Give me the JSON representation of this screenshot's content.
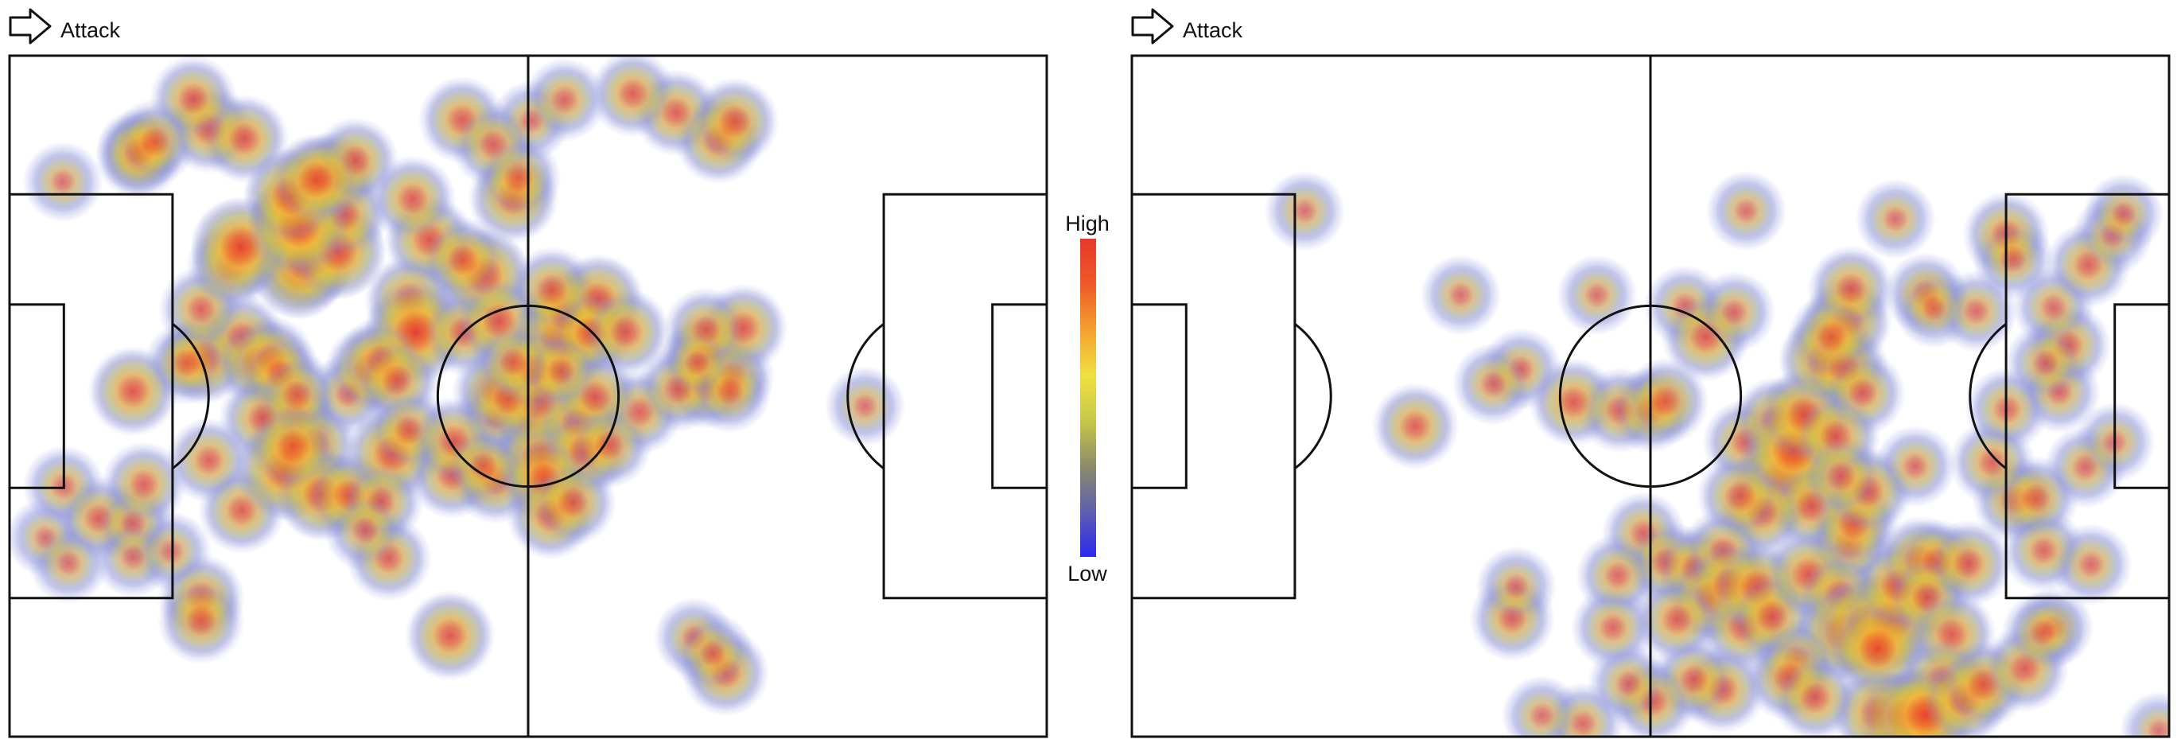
{
  "colors": {
    "pitch_line": "#111111",
    "scale": [
      "#2a2aee",
      "#5f5fae",
      "#8c8c6a",
      "#c8c84a",
      "#f0e040",
      "#f4a030",
      "#ee5a28",
      "#e8382a"
    ],
    "halo": "#8c92dc"
  },
  "colorbar": {
    "high_label": "High",
    "low_label": "Low"
  },
  "chart_data": [
    {
      "type": "heatmap",
      "direction_label": "Attack",
      "direction_icon": "arrow-right-icon",
      "pitch_length": 105,
      "pitch_width": 68,
      "attack_direction": "right",
      "points": [
        {
          "x": 12.5,
          "y": 33.5,
          "w": 0.6
        },
        {
          "x": 19.7,
          "y": 30.2,
          "w": 0.65
        },
        {
          "x": 23.5,
          "y": 28.1,
          "w": 0.5
        },
        {
          "x": 25.1,
          "y": 30.6,
          "w": 0.55
        },
        {
          "x": 34.3,
          "y": 33.8,
          "w": 0.35
        },
        {
          "x": 36.4,
          "y": 31.3,
          "w": 0.55
        },
        {
          "x": 49.2,
          "y": 36.1,
          "w": 0.3
        },
        {
          "x": 52.6,
          "y": 36.5,
          "w": 0.35
        },
        {
          "x": 63.8,
          "y": 35.6,
          "w": 0.45
        },
        {
          "x": 70.6,
          "y": 30.0,
          "w": 0.55
        },
        {
          "x": 70.5,
          "y": 33.0,
          "w": 0.45
        },
        {
          "x": 73.2,
          "y": 32.0,
          "w": 0.4
        },
        {
          "x": 74.3,
          "y": 27.2,
          "w": 0.55
        },
        {
          "x": 70.5,
          "y": 27.4,
          "w": 0.45
        },
        {
          "x": 86.6,
          "y": 35.0,
          "w": 0.3
        },
        {
          "x": 19.4,
          "y": 25.3,
          "w": 0.45
        },
        {
          "x": 22.4,
          "y": 21.0,
          "w": 0.55
        },
        {
          "x": 29.3,
          "y": 21.6,
          "w": 0.75
        },
        {
          "x": 30.0,
          "y": 20.4,
          "w": 0.85
        },
        {
          "x": 33.2,
          "y": 19.5,
          "w": 0.8
        },
        {
          "x": 28.9,
          "y": 16.7,
          "w": 0.75
        },
        {
          "x": 33.9,
          "y": 15.9,
          "w": 0.55
        },
        {
          "x": 23.4,
          "y": 19.1,
          "w": 0.85
        },
        {
          "x": 48.0,
          "y": 22.0,
          "w": 0.75
        },
        {
          "x": 42.5,
          "y": 18.4,
          "w": 0.6
        },
        {
          "x": 40.8,
          "y": 14.3,
          "w": 0.5
        },
        {
          "x": 40.5,
          "y": 24.4,
          "w": 0.6
        },
        {
          "x": 41.1,
          "y": 27.6,
          "w": 0.9
        },
        {
          "x": 46.0,
          "y": 27.6,
          "w": 0.5
        },
        {
          "x": 49.6,
          "y": 26.5,
          "w": 0.6
        },
        {
          "x": 55.8,
          "y": 28.3,
          "w": 0.9
        },
        {
          "x": 56.4,
          "y": 25.8,
          "w": 0.65
        },
        {
          "x": 59.6,
          "y": 24.4,
          "w": 0.65
        },
        {
          "x": 58.8,
          "y": 27.7,
          "w": 0.55
        },
        {
          "x": 62.4,
          "y": 27.6,
          "w": 0.55
        },
        {
          "x": 54.9,
          "y": 23.4,
          "w": 0.5
        },
        {
          "x": 29.3,
          "y": 17.0,
          "w": 0.9
        },
        {
          "x": 28.5,
          "y": 14.0,
          "w": 0.75
        },
        {
          "x": 32.5,
          "y": 12.1,
          "w": 0.6
        },
        {
          "x": 35.0,
          "y": 10.5,
          "w": 0.5
        },
        {
          "x": 31.0,
          "y": 12.4,
          "w": 0.65
        },
        {
          "x": 5.4,
          "y": 12.6,
          "w": 0.3
        },
        {
          "x": 13.1,
          "y": 10.0,
          "w": 0.5
        },
        {
          "x": 13.1,
          "y": 9.5,
          "w": 0.45
        },
        {
          "x": 20.2,
          "y": 7.3,
          "w": 0.55
        },
        {
          "x": 23.8,
          "y": 8.3,
          "w": 0.55
        },
        {
          "x": 18.6,
          "y": 4.3,
          "w": 0.5
        },
        {
          "x": 14.7,
          "y": 8.6,
          "w": 0.45
        },
        {
          "x": 45.8,
          "y": 6.4,
          "w": 0.5
        },
        {
          "x": 52.8,
          "y": 6.5,
          "w": 0.3
        },
        {
          "x": 67.5,
          "y": 5.7,
          "w": 0.5
        },
        {
          "x": 71.8,
          "y": 8.4,
          "w": 0.55
        },
        {
          "x": 73.4,
          "y": 6.6,
          "w": 0.55
        },
        {
          "x": 63.1,
          "y": 3.8,
          "w": 0.5
        },
        {
          "x": 56.2,
          "y": 4.4,
          "w": 0.4
        },
        {
          "x": 49.0,
          "y": 8.9,
          "w": 0.45
        },
        {
          "x": 51.0,
          "y": 14.2,
          "w": 0.6
        },
        {
          "x": 51.5,
          "y": 12.2,
          "w": 0.45
        },
        {
          "x": 45.9,
          "y": 20.4,
          "w": 0.5
        },
        {
          "x": 26.5,
          "y": 30.3,
          "w": 0.5
        },
        {
          "x": 37.6,
          "y": 30.4,
          "w": 0.5
        },
        {
          "x": 27.4,
          "y": 31.8,
          "w": 0.45
        },
        {
          "x": 17.9,
          "y": 30.7,
          "w": 0.4
        },
        {
          "x": 28.8,
          "y": 36.3,
          "w": 0.55
        },
        {
          "x": 30.8,
          "y": 38.8,
          "w": 0.55
        },
        {
          "x": 39.2,
          "y": 32.4,
          "w": 0.5
        },
        {
          "x": 25.6,
          "y": 36.2,
          "w": 0.5
        },
        {
          "x": 29.1,
          "y": 33.9,
          "w": 0.45
        },
        {
          "x": 67.7,
          "y": 33.3,
          "w": 0.45
        },
        {
          "x": 72.9,
          "y": 33.5,
          "w": 0.4
        },
        {
          "x": 49.2,
          "y": 33.5,
          "w": 0.5
        },
        {
          "x": 5.5,
          "y": 43.0,
          "w": 0.35
        },
        {
          "x": 3.6,
          "y": 48.1,
          "w": 0.25
        },
        {
          "x": 9.0,
          "y": 46.2,
          "w": 0.45
        },
        {
          "x": 12.5,
          "y": 46.7,
          "w": 0.35
        },
        {
          "x": 13.6,
          "y": 42.8,
          "w": 0.45
        },
        {
          "x": 20.2,
          "y": 40.4,
          "w": 0.45
        },
        {
          "x": 23.5,
          "y": 45.4,
          "w": 0.5
        },
        {
          "x": 28.0,
          "y": 41.3,
          "w": 0.9
        },
        {
          "x": 31.6,
          "y": 43.8,
          "w": 0.7
        },
        {
          "x": 34.4,
          "y": 43.9,
          "w": 0.55
        },
        {
          "x": 28.7,
          "y": 39.0,
          "w": 0.6
        },
        {
          "x": 38.7,
          "y": 39.8,
          "w": 0.7
        },
        {
          "x": 40.4,
          "y": 37.4,
          "w": 0.45
        },
        {
          "x": 37.6,
          "y": 44.5,
          "w": 0.45
        },
        {
          "x": 38.4,
          "y": 50.2,
          "w": 0.45
        },
        {
          "x": 36.0,
          "y": 47.4,
          "w": 0.35
        },
        {
          "x": 44.8,
          "y": 41.9,
          "w": 0.5
        },
        {
          "x": 45.0,
          "y": 38.5,
          "w": 0.55
        },
        {
          "x": 49.2,
          "y": 42.4,
          "w": 0.5
        },
        {
          "x": 53.9,
          "y": 40.3,
          "w": 0.8
        },
        {
          "x": 53.5,
          "y": 34.4,
          "w": 0.75
        },
        {
          "x": 50.5,
          "y": 34.3,
          "w": 0.5
        },
        {
          "x": 57.5,
          "y": 36.7,
          "w": 0.55
        },
        {
          "x": 59.3,
          "y": 34.1,
          "w": 0.55
        },
        {
          "x": 58.2,
          "y": 39.6,
          "w": 0.6
        },
        {
          "x": 54.1,
          "y": 42.4,
          "w": 0.6
        },
        {
          "x": 54.8,
          "y": 45.9,
          "w": 0.55
        },
        {
          "x": 57.0,
          "y": 44.6,
          "w": 0.5
        },
        {
          "x": 53.0,
          "y": 31.4,
          "w": 0.55
        },
        {
          "x": 48.0,
          "y": 41.0,
          "w": 0.4
        },
        {
          "x": 60.7,
          "y": 38.9,
          "w": 0.45
        },
        {
          "x": 19.4,
          "y": 54.1,
          "w": 0.5
        },
        {
          "x": 19.4,
          "y": 56.4,
          "w": 0.5
        },
        {
          "x": 12.5,
          "y": 50.1,
          "w": 0.3
        },
        {
          "x": 6.0,
          "y": 50.7,
          "w": 0.3
        },
        {
          "x": 16.4,
          "y": 49.5,
          "w": 0.3
        },
        {
          "x": 44.6,
          "y": 57.9,
          "w": 0.6
        },
        {
          "x": 69.3,
          "y": 58.1,
          "w": 0.3
        },
        {
          "x": 72.5,
          "y": 61.6,
          "w": 0.5
        },
        {
          "x": 71.2,
          "y": 59.7,
          "w": 0.35
        },
        {
          "x": 69.6,
          "y": 30.7,
          "w": 0.3
        },
        {
          "x": 55.8,
          "y": 31.5,
          "w": 0.4
        },
        {
          "x": 51.0,
          "y": 30.6,
          "w": 0.4
        }
      ]
    },
    {
      "type": "heatmap",
      "direction_label": "Attack",
      "direction_icon": "arrow-right-icon",
      "pitch_length": 105,
      "pitch_width": 68,
      "attack_direction": "right",
      "points": [
        {
          "x": 28.7,
          "y": 37.0,
          "w": 0.5
        },
        {
          "x": 17.5,
          "y": 15.5,
          "w": 0.3
        },
        {
          "x": 33.3,
          "y": 23.9,
          "w": 0.3
        },
        {
          "x": 47.1,
          "y": 23.9,
          "w": 0.3
        },
        {
          "x": 56.0,
          "y": 25.0,
          "w": 0.35
        },
        {
          "x": 62.2,
          "y": 15.5,
          "w": 0.3
        },
        {
          "x": 58.1,
          "y": 28.1,
          "w": 0.55
        },
        {
          "x": 61.0,
          "y": 25.6,
          "w": 0.35
        },
        {
          "x": 39.4,
          "y": 31.3,
          "w": 0.35
        },
        {
          "x": 44.7,
          "y": 34.6,
          "w": 0.55
        },
        {
          "x": 49.4,
          "y": 35.4,
          "w": 0.45
        },
        {
          "x": 52.5,
          "y": 35.4,
          "w": 0.45
        },
        {
          "x": 54.0,
          "y": 34.5,
          "w": 0.5
        },
        {
          "x": 36.6,
          "y": 32.8,
          "w": 0.35
        },
        {
          "x": 62.1,
          "y": 38.6,
          "w": 0.45
        },
        {
          "x": 65.2,
          "y": 36.5,
          "w": 0.55
        },
        {
          "x": 66.0,
          "y": 42.1,
          "w": 0.85
        },
        {
          "x": 67.0,
          "y": 39.4,
          "w": 0.9
        },
        {
          "x": 68.1,
          "y": 35.9,
          "w": 0.7
        },
        {
          "x": 68.8,
          "y": 45.0,
          "w": 0.55
        },
        {
          "x": 70.2,
          "y": 30.4,
          "w": 0.7
        },
        {
          "x": 72.1,
          "y": 31.1,
          "w": 0.55
        },
        {
          "x": 72.4,
          "y": 26.5,
          "w": 0.6
        },
        {
          "x": 72.8,
          "y": 23.3,
          "w": 0.5
        },
        {
          "x": 74.0,
          "y": 33.7,
          "w": 0.45
        },
        {
          "x": 71.3,
          "y": 38.0,
          "w": 0.55
        },
        {
          "x": 70.8,
          "y": 28.1,
          "w": 0.5
        },
        {
          "x": 80.4,
          "y": 23.8,
          "w": 0.4
        },
        {
          "x": 79.3,
          "y": 41.0,
          "w": 0.35
        },
        {
          "x": 72.6,
          "y": 48.8,
          "w": 0.5
        },
        {
          "x": 63.8,
          "y": 45.6,
          "w": 0.55
        },
        {
          "x": 61.6,
          "y": 44.0,
          "w": 0.5
        },
        {
          "x": 51.8,
          "y": 47.7,
          "w": 0.4
        },
        {
          "x": 54.1,
          "y": 50.6,
          "w": 0.45
        },
        {
          "x": 57.0,
          "y": 51.2,
          "w": 0.45
        },
        {
          "x": 58.6,
          "y": 54.1,
          "w": 0.6
        },
        {
          "x": 61.9,
          "y": 57.0,
          "w": 0.55
        },
        {
          "x": 59.9,
          "y": 49.5,
          "w": 0.45
        },
        {
          "x": 60.5,
          "y": 52.8,
          "w": 0.6
        },
        {
          "x": 63.3,
          "y": 53.1,
          "w": 0.65
        },
        {
          "x": 64.8,
          "y": 56.0,
          "w": 0.55
        },
        {
          "x": 68.5,
          "y": 51.8,
          "w": 0.6
        },
        {
          "x": 71.7,
          "y": 53.9,
          "w": 0.55
        },
        {
          "x": 72.1,
          "y": 57.5,
          "w": 0.8
        },
        {
          "x": 74.5,
          "y": 56.9,
          "w": 0.9
        },
        {
          "x": 76.8,
          "y": 56.5,
          "w": 0.85
        },
        {
          "x": 75.5,
          "y": 59.2,
          "w": 0.75
        },
        {
          "x": 77.6,
          "y": 52.9,
          "w": 0.65
        },
        {
          "x": 79.8,
          "y": 50.4,
          "w": 0.55
        },
        {
          "x": 81.5,
          "y": 50.6,
          "w": 0.5
        },
        {
          "x": 80.5,
          "y": 54.1,
          "w": 0.5
        },
        {
          "x": 83.0,
          "y": 57.8,
          "w": 0.55
        },
        {
          "x": 82.0,
          "y": 62.5,
          "w": 0.6
        },
        {
          "x": 79.2,
          "y": 66.0,
          "w": 0.65
        },
        {
          "x": 75.6,
          "y": 65.7,
          "w": 0.7
        },
        {
          "x": 78.3,
          "y": 66.0,
          "w": 0.75
        },
        {
          "x": 80.4,
          "y": 65.8,
          "w": 0.85
        },
        {
          "x": 84.3,
          "y": 64.3,
          "w": 0.6
        },
        {
          "x": 86.2,
          "y": 62.8,
          "w": 0.55
        },
        {
          "x": 84.7,
          "y": 50.7,
          "w": 0.5
        },
        {
          "x": 89.4,
          "y": 44.4,
          "w": 0.45
        },
        {
          "x": 91.5,
          "y": 44.2,
          "w": 0.45
        },
        {
          "x": 87.1,
          "y": 40.6,
          "w": 0.45
        },
        {
          "x": 92.3,
          "y": 49.4,
          "w": 0.4
        },
        {
          "x": 93.3,
          "y": 57.1,
          "w": 0.3
        },
        {
          "x": 97.1,
          "y": 50.8,
          "w": 0.35
        },
        {
          "x": 96.5,
          "y": 41.1,
          "w": 0.35
        },
        {
          "x": 99.5,
          "y": 38.6,
          "w": 0.3
        },
        {
          "x": 93.9,
          "y": 33.6,
          "w": 0.35
        },
        {
          "x": 94.8,
          "y": 28.9,
          "w": 0.45
        },
        {
          "x": 92.5,
          "y": 30.7,
          "w": 0.35
        },
        {
          "x": 93.3,
          "y": 25.1,
          "w": 0.35
        },
        {
          "x": 96.8,
          "y": 20.9,
          "w": 0.45
        },
        {
          "x": 99.3,
          "y": 17.9,
          "w": 0.3
        },
        {
          "x": 100.4,
          "y": 15.8,
          "w": 0.3
        },
        {
          "x": 88.5,
          "y": 17.9,
          "w": 0.5
        },
        {
          "x": 89.2,
          "y": 20.3,
          "w": 0.35
        },
        {
          "x": 85.5,
          "y": 25.5,
          "w": 0.35
        },
        {
          "x": 77.3,
          "y": 16.3,
          "w": 0.3
        },
        {
          "x": 81.2,
          "y": 25.2,
          "w": 0.3
        },
        {
          "x": 73.1,
          "y": 46.7,
          "w": 0.55
        },
        {
          "x": 74.5,
          "y": 43.5,
          "w": 0.55
        },
        {
          "x": 71.8,
          "y": 42.0,
          "w": 0.45
        },
        {
          "x": 67.3,
          "y": 60.3,
          "w": 0.4
        },
        {
          "x": 59.8,
          "y": 63.3,
          "w": 0.5
        },
        {
          "x": 56.9,
          "y": 62.3,
          "w": 0.45
        },
        {
          "x": 52.8,
          "y": 64.5,
          "w": 0.45
        },
        {
          "x": 50.3,
          "y": 62.7,
          "w": 0.35
        },
        {
          "x": 45.7,
          "y": 66.7,
          "w": 0.35
        },
        {
          "x": 41.5,
          "y": 65.9,
          "w": 0.3
        },
        {
          "x": 38.5,
          "y": 56.2,
          "w": 0.45
        },
        {
          "x": 38.9,
          "y": 53.0,
          "w": 0.3
        },
        {
          "x": 49.2,
          "y": 51.9,
          "w": 0.4
        },
        {
          "x": 48.7,
          "y": 57.1,
          "w": 0.4
        },
        {
          "x": 55.2,
          "y": 56.3,
          "w": 0.5
        },
        {
          "x": 66.5,
          "y": 62.1,
          "w": 0.5
        },
        {
          "x": 69.2,
          "y": 64.1,
          "w": 0.5
        },
        {
          "x": 104.0,
          "y": 67.4,
          "w": 0.25
        },
        {
          "x": 90.4,
          "y": 61.2,
          "w": 0.5
        },
        {
          "x": 92.2,
          "y": 57.6,
          "w": 0.35
        },
        {
          "x": 88.6,
          "y": 35.3,
          "w": 0.4
        }
      ]
    }
  ]
}
